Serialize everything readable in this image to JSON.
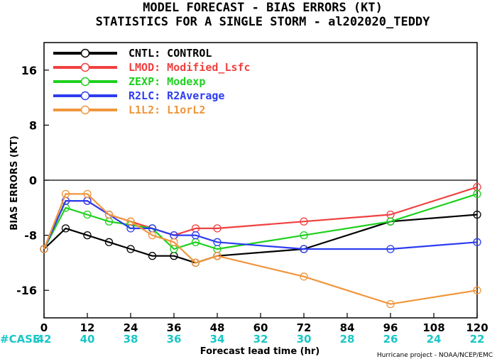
{
  "chart_data": {
    "type": "line",
    "title": "MODEL FORECAST - BIAS ERRORS (KT)",
    "subtitle": "STATISTICS FOR A SINGLE STORM - al202020_TEDDY",
    "xlabel": "Forecast lead time (hr)",
    "ylabel": "BIAS ERRORS (KT)",
    "xlim": [
      0,
      120
    ],
    "ylim": [
      -20,
      20
    ],
    "xticks": [
      0,
      12,
      24,
      36,
      48,
      60,
      72,
      84,
      96,
      108,
      120
    ],
    "yticks": [
      -16,
      -8,
      0,
      8,
      16
    ],
    "ytick_labels": [
      "-16",
      "-8",
      "0",
      "8",
      "16"
    ],
    "zero_line": true,
    "case_label": "#CASE",
    "cases": [
      {
        "x": 0,
        "n": "42"
      },
      {
        "x": 12,
        "n": "40"
      },
      {
        "x": 24,
        "n": "38"
      },
      {
        "x": 36,
        "n": "36"
      },
      {
        "x": 48,
        "n": "34"
      },
      {
        "x": 60,
        "n": "32"
      },
      {
        "x": 72,
        "n": "30"
      },
      {
        "x": 84,
        "n": "28"
      },
      {
        "x": 96,
        "n": "26"
      },
      {
        "x": 108,
        "n": "24"
      },
      {
        "x": 120,
        "n": "22"
      }
    ],
    "credit": "Hurricane project - NOAA/NCEP/EMC",
    "legend_position": "top-left",
    "series": [
      {
        "name": "CNTL: CONTROL",
        "color": "#000000",
        "x": [
          0,
          6,
          12,
          18,
          24,
          30,
          36,
          42,
          48,
          72,
          96,
          120
        ],
        "y": [
          -10,
          -7,
          -8,
          -9,
          -10,
          -11,
          -11,
          -12,
          -11,
          -10,
          -6,
          -5
        ]
      },
      {
        "name": "LMOD: Modified_Lsfc",
        "color": "#f04040",
        "x": [
          0,
          6,
          12,
          18,
          24,
          30,
          36,
          42,
          48,
          72,
          96,
          120
        ],
        "y": [
          -10,
          -3,
          -3,
          -5,
          -6,
          -7,
          -8,
          -7,
          -7,
          -6,
          -5,
          -1
        ]
      },
      {
        "name": "ZEXP: Modexp",
        "color": "#1ed01e",
        "x": [
          0,
          6,
          12,
          18,
          24,
          30,
          36,
          42,
          48,
          72,
          96,
          120
        ],
        "y": [
          -10,
          -4,
          -5,
          -6,
          -6.5,
          -7,
          -10,
          -9,
          -10,
          -8,
          -6,
          -2
        ]
      },
      {
        "name": "R2LC: R2Average",
        "color": "#2d3df0",
        "x": [
          0,
          6,
          12,
          18,
          24,
          30,
          36,
          42,
          48,
          72,
          96,
          120
        ],
        "y": [
          -10,
          -3,
          -3,
          -5,
          -7,
          -7,
          -8,
          -8,
          -9,
          -10,
          -10,
          -9
        ]
      },
      {
        "name": "L1L2: L1orL2",
        "color": "#f0963c",
        "x": [
          0,
          6,
          12,
          18,
          24,
          30,
          36,
          42,
          48,
          72,
          96,
          120
        ],
        "y": [
          -10,
          -2,
          -2,
          -5,
          -6,
          -8,
          -9,
          -12,
          -11,
          -14,
          -18,
          -16
        ]
      }
    ]
  }
}
